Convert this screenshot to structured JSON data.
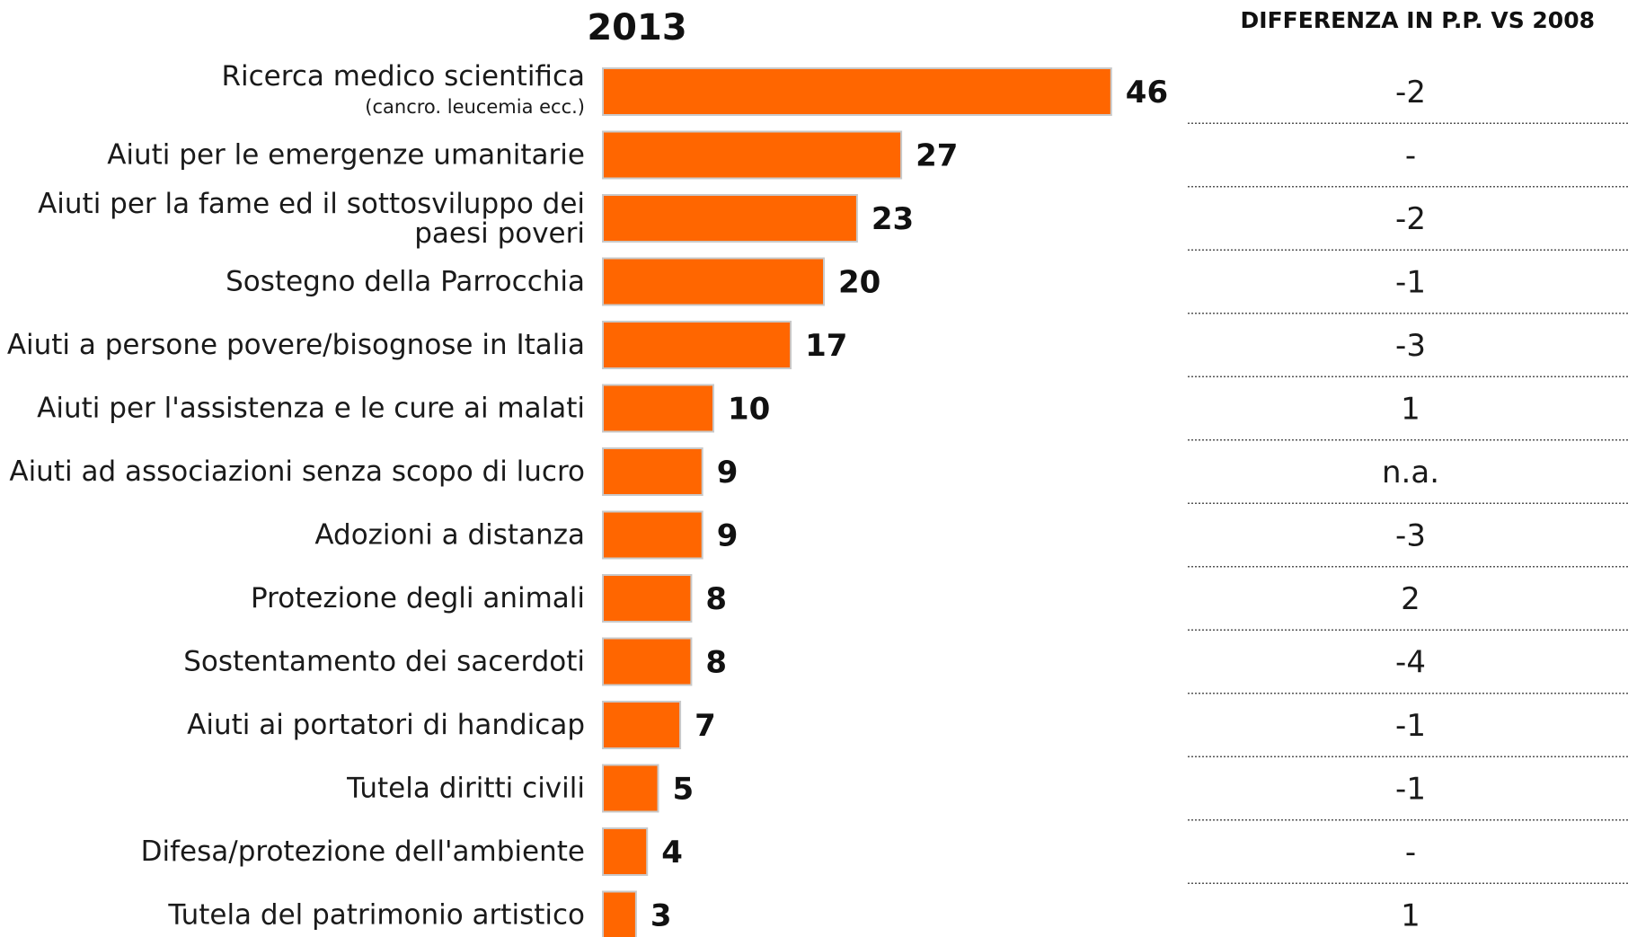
{
  "chart_data": {
    "type": "bar",
    "orientation": "horizontal",
    "title": "2013",
    "categories": [
      "Ricerca medico scientifica",
      "Aiuti per le emergenze umanitarie",
      "Aiuti per la fame ed il sottosviluppo dei paesi poveri",
      "Sostegno della Parrocchia",
      "Aiuti a persone povere/bisognose in Italia",
      "Aiuti per l'assistenza e le cure ai malati",
      "Aiuti ad associazioni senza scopo di lucro",
      "Adozioni a distanza",
      "Protezione degli animali",
      "Sostentamento dei sacerdoti",
      "Aiuti ai portatori di handicap",
      "Tutela diritti civili",
      "Difesa/protezione dell'ambiente",
      "Tutela del patrimonio artistico"
    ],
    "category_label_lines": [
      [
        "Ricerca medico scientifica"
      ],
      [
        "Aiuti per le emergenze umanitarie"
      ],
      [
        "Aiuti per la fame ed il sottosviluppo dei",
        "paesi poveri"
      ],
      [
        "Sostegno della Parrocchia"
      ],
      [
        "Aiuti a persone povere/bisognose in Italia"
      ],
      [
        "Aiuti per l'assistenza e le cure ai malati"
      ],
      [
        "Aiuti ad associazioni senza scopo di lucro"
      ],
      [
        "Adozioni a distanza"
      ],
      [
        "Protezione degli animali"
      ],
      [
        "Sostentamento dei sacerdoti"
      ],
      [
        "Aiuti ai portatori di handicap"
      ],
      [
        "Tutela diritti civili"
      ],
      [
        "Difesa/protezione dell'ambiente"
      ],
      [
        "Tutela del patrimonio artistico"
      ]
    ],
    "category_notes": [
      "(cancro. leucemia ecc.)",
      "",
      "",
      "",
      "",
      "",
      "",
      "",
      "",
      "",
      "",
      "",
      "",
      ""
    ],
    "values": [
      46,
      27,
      23,
      20,
      17,
      10,
      9,
      9,
      8,
      8,
      7,
      5,
      4,
      3
    ],
    "value_labels": [
      "46",
      "27",
      "23",
      "20",
      "17",
      "10",
      "9",
      "9",
      "8",
      "8",
      "7",
      "5",
      "4",
      "3"
    ],
    "bar_color": "#ff6600",
    "difference": {
      "title": "DIFFERENZA IN P.P. VS 2008",
      "values": [
        "-2",
        "-",
        "-2",
        "-1",
        "-3",
        "1",
        "n.a.",
        "-3",
        "2",
        "-4",
        "-1",
        "-1",
        "-",
        "1"
      ]
    },
    "xlim": [
      0,
      46
    ],
    "grid": false,
    "legend": "none"
  }
}
